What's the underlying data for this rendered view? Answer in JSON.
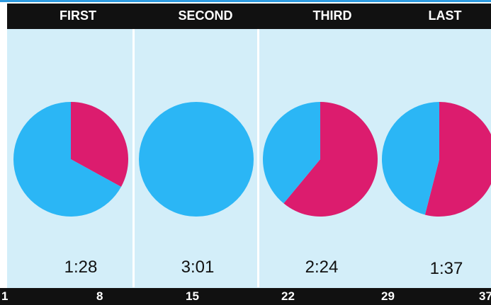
{
  "chart_data": {
    "type": "pie",
    "panels": [
      {
        "label": "FIRST",
        "time": "1:28",
        "slices": [
          {
            "color": "#dc1c6e",
            "value": 0.33
          },
          {
            "color": "#2bb6f5",
            "value": 0.67
          }
        ]
      },
      {
        "label": "SECOND",
        "time": "3:01",
        "slices": [
          {
            "color": "#dc1c6e",
            "value": 0.0
          },
          {
            "color": "#2bb6f5",
            "value": 1.0
          }
        ]
      },
      {
        "label": "THIRD",
        "time": "2:24",
        "slices": [
          {
            "color": "#dc1c6e",
            "value": 0.61
          },
          {
            "color": "#2bb6f5",
            "value": 0.39
          }
        ]
      },
      {
        "label": "LAST",
        "time": "1:37",
        "slices": [
          {
            "color": "#dc1c6e",
            "value": 0.54
          },
          {
            "color": "#2bb6f5",
            "value": 0.46
          }
        ]
      }
    ],
    "x_ticks": [
      "1",
      "8",
      "15",
      "22",
      "29",
      "37"
    ]
  },
  "colors": {
    "background_panel": "#d3eef9",
    "header_bg": "#111111",
    "accent_line": "#2e9be0",
    "magenta": "#dc1c6e",
    "blue": "#2bb6f5"
  }
}
